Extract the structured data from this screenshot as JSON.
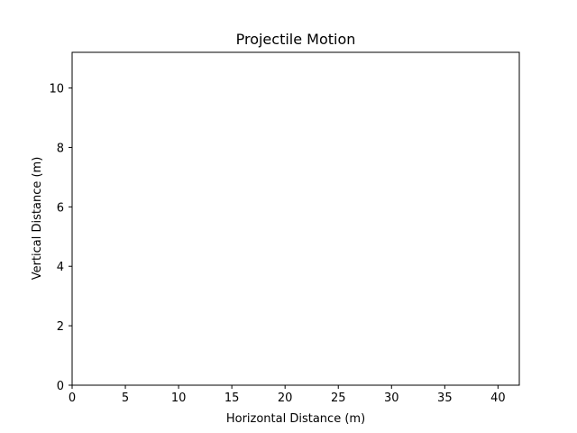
{
  "chart_data": {
    "type": "line",
    "title": "Projectile Motion",
    "xlabel": "Horizontal Distance (m)",
    "ylabel": "Vertical Distance (m)",
    "xlim": [
      0,
      42
    ],
    "ylim": [
      0,
      11.2
    ],
    "xticks": [
      0,
      5,
      10,
      15,
      20,
      25,
      30,
      35,
      40
    ],
    "yticks": [
      0,
      2,
      4,
      6,
      8,
      10
    ],
    "grid": false,
    "series": []
  }
}
